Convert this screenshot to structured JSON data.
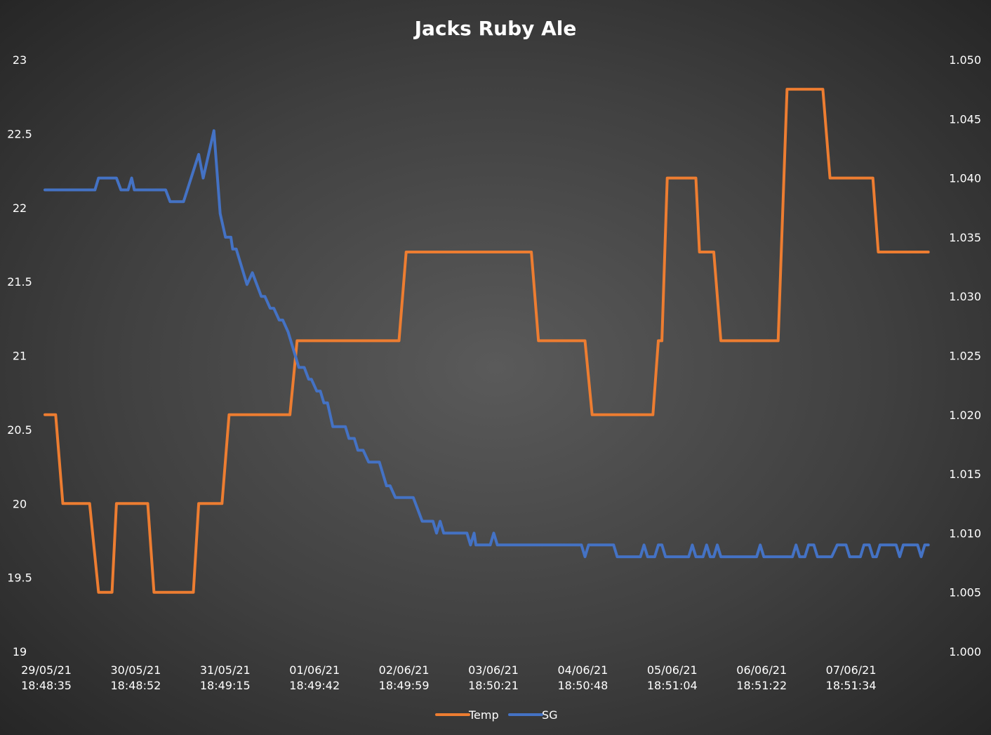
{
  "chart_data": {
    "type": "line",
    "title": "Jacks Ruby Ale",
    "xlabel": "",
    "ylabel": "",
    "y_left_ticks": [
      "19",
      "19.5",
      "20",
      "20.5",
      "21",
      "21.5",
      "22",
      "22.5",
      "23"
    ],
    "y_right_ticks": [
      "1.000",
      "1.005",
      "1.010",
      "1.015",
      "1.020",
      "1.025",
      "1.030",
      "1.035",
      "1.040",
      "1.045",
      "1.050"
    ],
    "ylim_left": [
      19,
      23
    ],
    "ylim_right": [
      1.0,
      1.05
    ],
    "x_ticks": [
      {
        "date": "29/05/21",
        "time": "18:48:35"
      },
      {
        "date": "30/05/21",
        "time": "18:48:52"
      },
      {
        "date": "31/05/21",
        "time": "18:49:15"
      },
      {
        "date": "01/06/21",
        "time": "18:49:42"
      },
      {
        "date": "02/06/21",
        "time": "18:49:59"
      },
      {
        "date": "03/06/21",
        "time": "18:50:21"
      },
      {
        "date": "04/06/21",
        "time": "18:50:48"
      },
      {
        "date": "05/06/21",
        "time": "18:51:04"
      },
      {
        "date": "06/06/21",
        "time": "18:51:22"
      },
      {
        "date": "07/06/21",
        "time": "18:51:34"
      }
    ],
    "legend_position": "bottom",
    "grid": false,
    "series": [
      {
        "name": "Temp",
        "axis": "left",
        "color": "#ED7D31",
        "points": [
          [
            0.0,
            20.6
          ],
          [
            0.12,
            20.6
          ],
          [
            0.2,
            20.0
          ],
          [
            0.5,
            20.0
          ],
          [
            0.6,
            19.4
          ],
          [
            0.75,
            19.4
          ],
          [
            0.8,
            20.0
          ],
          [
            1.15,
            20.0
          ],
          [
            1.22,
            19.4
          ],
          [
            1.66,
            19.4
          ],
          [
            1.72,
            20.0
          ],
          [
            1.98,
            20.0
          ],
          [
            2.06,
            20.6
          ],
          [
            2.74,
            20.6
          ],
          [
            2.82,
            21.1
          ],
          [
            3.96,
            21.1
          ],
          [
            4.04,
            21.7
          ],
          [
            5.44,
            21.7
          ],
          [
            5.52,
            21.1
          ],
          [
            6.04,
            21.1
          ],
          [
            6.12,
            20.6
          ],
          [
            6.8,
            20.6
          ],
          [
            6.86,
            21.1
          ],
          [
            6.9,
            21.1
          ],
          [
            6.96,
            22.2
          ],
          [
            7.28,
            22.2
          ],
          [
            7.32,
            21.7
          ],
          [
            7.48,
            21.7
          ],
          [
            7.56,
            21.1
          ],
          [
            8.2,
            21.1
          ],
          [
            8.3,
            22.8
          ],
          [
            8.7,
            22.8
          ],
          [
            8.78,
            22.2
          ],
          [
            9.26,
            22.2
          ],
          [
            9.32,
            21.7
          ],
          [
            9.88,
            21.7
          ]
        ]
      },
      {
        "name": "SG",
        "axis": "right",
        "color": "#4472C4",
        "points": [
          [
            0.0,
            1.039
          ],
          [
            0.56,
            1.039
          ],
          [
            0.6,
            1.04
          ],
          [
            0.8,
            1.04
          ],
          [
            0.85,
            1.039
          ],
          [
            0.93,
            1.039
          ],
          [
            0.97,
            1.04
          ],
          [
            1.0,
            1.039
          ],
          [
            1.35,
            1.039
          ],
          [
            1.4,
            1.038
          ],
          [
            1.55,
            1.038
          ],
          [
            1.72,
            1.042
          ],
          [
            1.77,
            1.04
          ],
          [
            1.86,
            1.043
          ],
          [
            1.89,
            1.044
          ],
          [
            1.96,
            1.037
          ],
          [
            2.02,
            1.035
          ],
          [
            2.08,
            1.035
          ],
          [
            2.1,
            1.034
          ],
          [
            2.14,
            1.034
          ],
          [
            2.26,
            1.031
          ],
          [
            2.32,
            1.032
          ],
          [
            2.42,
            1.03
          ],
          [
            2.46,
            1.03
          ],
          [
            2.52,
            1.029
          ],
          [
            2.56,
            1.029
          ],
          [
            2.62,
            1.028
          ],
          [
            2.66,
            1.028
          ],
          [
            2.72,
            1.027
          ],
          [
            2.84,
            1.024
          ],
          [
            2.9,
            1.024
          ],
          [
            2.95,
            1.023
          ],
          [
            2.98,
            1.023
          ],
          [
            3.04,
            1.022
          ],
          [
            3.08,
            1.022
          ],
          [
            3.12,
            1.021
          ],
          [
            3.16,
            1.021
          ],
          [
            3.22,
            1.019
          ],
          [
            3.36,
            1.019
          ],
          [
            3.4,
            1.018
          ],
          [
            3.46,
            1.018
          ],
          [
            3.5,
            1.017
          ],
          [
            3.56,
            1.017
          ],
          [
            3.62,
            1.016
          ],
          [
            3.74,
            1.016
          ],
          [
            3.82,
            1.014
          ],
          [
            3.86,
            1.014
          ],
          [
            3.92,
            1.013
          ],
          [
            4.12,
            1.013
          ],
          [
            4.22,
            1.011
          ],
          [
            4.34,
            1.011
          ],
          [
            4.38,
            1.01
          ],
          [
            4.42,
            1.011
          ],
          [
            4.46,
            1.01
          ],
          [
            4.72,
            1.01
          ],
          [
            4.76,
            1.009
          ],
          [
            4.8,
            1.01
          ],
          [
            4.82,
            1.009
          ],
          [
            4.98,
            1.009
          ],
          [
            5.02,
            1.01
          ],
          [
            5.06,
            1.009
          ],
          [
            6.0,
            1.009
          ],
          [
            6.04,
            1.008
          ],
          [
            6.08,
            1.009
          ],
          [
            6.36,
            1.009
          ],
          [
            6.4,
            1.008
          ],
          [
            6.66,
            1.008
          ],
          [
            6.7,
            1.009
          ],
          [
            6.74,
            1.008
          ],
          [
            6.82,
            1.008
          ],
          [
            6.86,
            1.009
          ],
          [
            6.9,
            1.009
          ],
          [
            6.94,
            1.008
          ],
          [
            7.2,
            1.008
          ],
          [
            7.24,
            1.009
          ],
          [
            7.28,
            1.008
          ],
          [
            7.36,
            1.008
          ],
          [
            7.4,
            1.009
          ],
          [
            7.44,
            1.008
          ],
          [
            7.48,
            1.008
          ],
          [
            7.52,
            1.009
          ],
          [
            7.56,
            1.008
          ],
          [
            7.96,
            1.008
          ],
          [
            8.0,
            1.009
          ],
          [
            8.04,
            1.008
          ],
          [
            8.36,
            1.008
          ],
          [
            8.4,
            1.009
          ],
          [
            8.44,
            1.008
          ],
          [
            8.5,
            1.008
          ],
          [
            8.54,
            1.009
          ],
          [
            8.6,
            1.009
          ],
          [
            8.64,
            1.008
          ],
          [
            8.8,
            1.008
          ],
          [
            8.86,
            1.009
          ],
          [
            8.96,
            1.009
          ],
          [
            9.0,
            1.008
          ],
          [
            9.12,
            1.008
          ],
          [
            9.16,
            1.009
          ],
          [
            9.22,
            1.009
          ],
          [
            9.26,
            1.008
          ],
          [
            9.3,
            1.008
          ],
          [
            9.34,
            1.009
          ],
          [
            9.52,
            1.009
          ],
          [
            9.56,
            1.008
          ],
          [
            9.6,
            1.009
          ],
          [
            9.76,
            1.009
          ],
          [
            9.8,
            1.008
          ],
          [
            9.84,
            1.009
          ],
          [
            9.88,
            1.009
          ]
        ]
      }
    ]
  }
}
